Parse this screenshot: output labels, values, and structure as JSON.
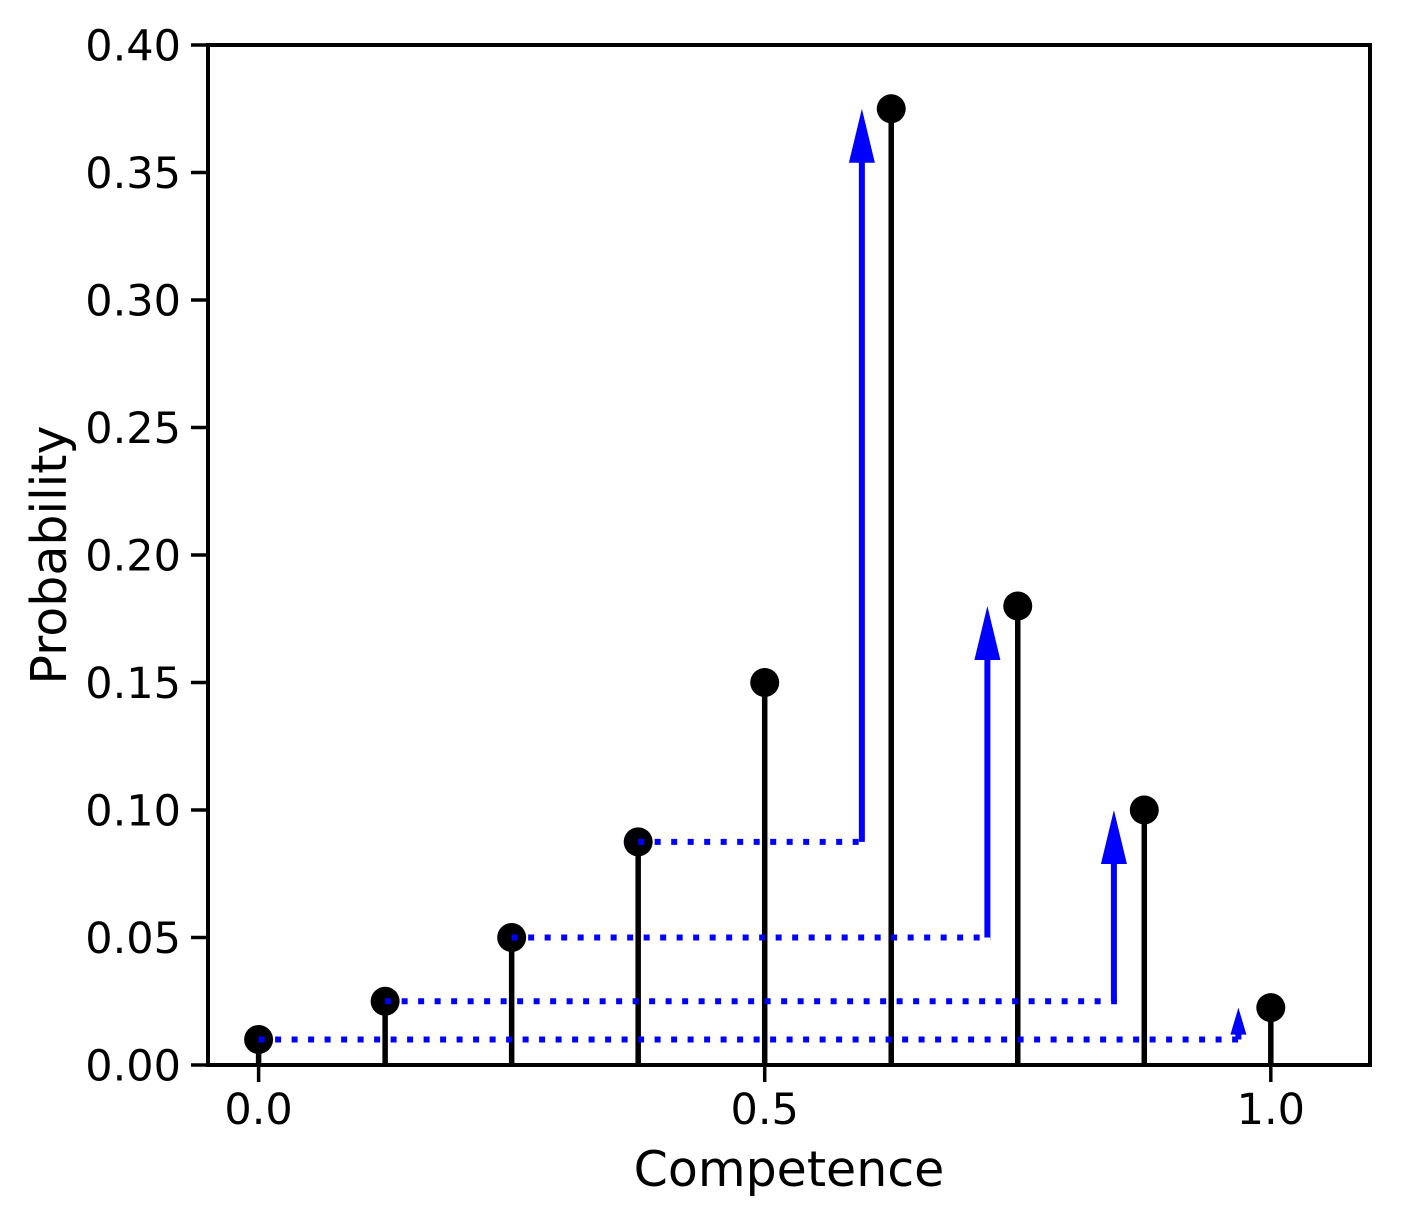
{
  "chart_data": {
    "type": "stem",
    "title": "",
    "xlabel": "Competence",
    "ylabel": "Probability",
    "x": [
      0.0,
      0.125,
      0.25,
      0.375,
      0.5,
      0.625,
      0.75,
      0.875,
      1.0
    ],
    "values": [
      0.01,
      0.025,
      0.05,
      0.0875,
      0.15,
      0.375,
      0.18,
      0.1,
      0.0225
    ],
    "xlim": [
      -0.05,
      1.098
    ],
    "ylim": [
      0.0,
      0.4
    ],
    "xticks": {
      "positions": [
        0.0,
        0.5,
        1.0
      ],
      "labels": [
        "0.0",
        "0.5",
        "1.0"
      ]
    },
    "yticks": {
      "positions": [
        0.0,
        0.05,
        0.1,
        0.15,
        0.2,
        0.25,
        0.3,
        0.35,
        0.4
      ],
      "labels": [
        "0.00",
        "0.05",
        "0.10",
        "0.15",
        "0.20",
        "0.25",
        "0.30",
        "0.35",
        "0.40"
      ]
    },
    "grid": false,
    "legend": null,
    "marker": "circle",
    "colors": {
      "stem": "#000000",
      "marker": "#000000",
      "transfer_arrow": "#0000ff",
      "axis": "#000000",
      "background": "#ffffff"
    },
    "transfer_arrows": [
      {
        "from_x": 0.375,
        "from_y": 0.0875,
        "elbow_x": 0.596,
        "tip_y": 0.375,
        "target_x": 0.625
      },
      {
        "from_x": 0.25,
        "from_y": 0.05,
        "elbow_x": 0.72,
        "tip_y": 0.18,
        "target_x": 0.75
      },
      {
        "from_x": 0.125,
        "from_y": 0.025,
        "elbow_x": 0.845,
        "tip_y": 0.1,
        "target_x": 0.875
      },
      {
        "from_x": 0.0,
        "from_y": 0.01,
        "elbow_x": 0.968,
        "tip_y": 0.0225,
        "target_x": 1.0
      }
    ]
  }
}
